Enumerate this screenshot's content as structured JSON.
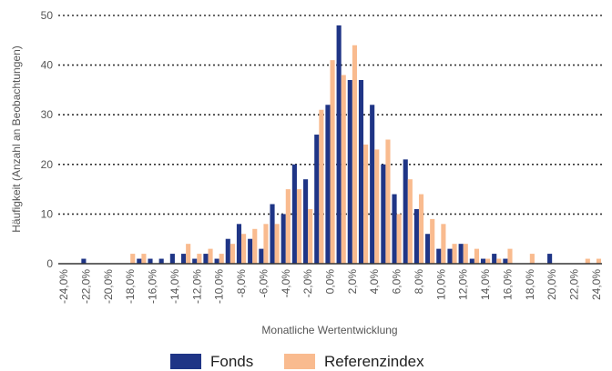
{
  "chart_data": {
    "type": "bar",
    "y_label": "Häufigkeit (Anzahl an Beobachtungen)",
    "x_label": "Monatliche Wertentwicklung",
    "categories": [
      "-24,0%",
      null,
      "-22,0%",
      null,
      "-20,0%",
      null,
      "-18,0%",
      null,
      "-16,0%",
      null,
      "-14,0%",
      null,
      "-12,0%",
      null,
      "-10,0%",
      null,
      "-8,0%",
      null,
      "-6,0%",
      null,
      "-4,0%",
      null,
      "-2,0%",
      null,
      "0,0%",
      null,
      "2,0%",
      null,
      "4,0%",
      null,
      "6,0%",
      null,
      "8,0%",
      null,
      "10,0%",
      null,
      "12,0%",
      null,
      "14,0%",
      null,
      "16,0%",
      null,
      "18,0%",
      null,
      "20,0%",
      null,
      "22,0%",
      null,
      "24,0%"
    ],
    "series": [
      {
        "name": "Fonds",
        "color": "#1f3586",
        "values": [
          0,
          0,
          1,
          0,
          0,
          0,
          0,
          1,
          1,
          1,
          2,
          2,
          1,
          2,
          1,
          5,
          8,
          5,
          3,
          12,
          10,
          20,
          17,
          26,
          32,
          48,
          37,
          37,
          32,
          20,
          14,
          21,
          11,
          6,
          3,
          3,
          4,
          1,
          1,
          2,
          1,
          0,
          0,
          0,
          2,
          0,
          0,
          0,
          0
        ]
      },
      {
        "name": "Referenzindex",
        "color": "#f9bb8f",
        "values": [
          0,
          0,
          0,
          0,
          0,
          0,
          2,
          2,
          0,
          0,
          0,
          4,
          2,
          3,
          2,
          4,
          6,
          7,
          8,
          8,
          15,
          15,
          11,
          31,
          41,
          38,
          44,
          24,
          23,
          25,
          10,
          17,
          14,
          9,
          8,
          4,
          4,
          3,
          1,
          1,
          3,
          0,
          2,
          0,
          0,
          0,
          0,
          1,
          1
        ]
      }
    ],
    "ylim": [
      0,
      50
    ],
    "yticks": [
      0,
      10,
      20,
      30,
      40,
      50
    ],
    "grid": true
  }
}
